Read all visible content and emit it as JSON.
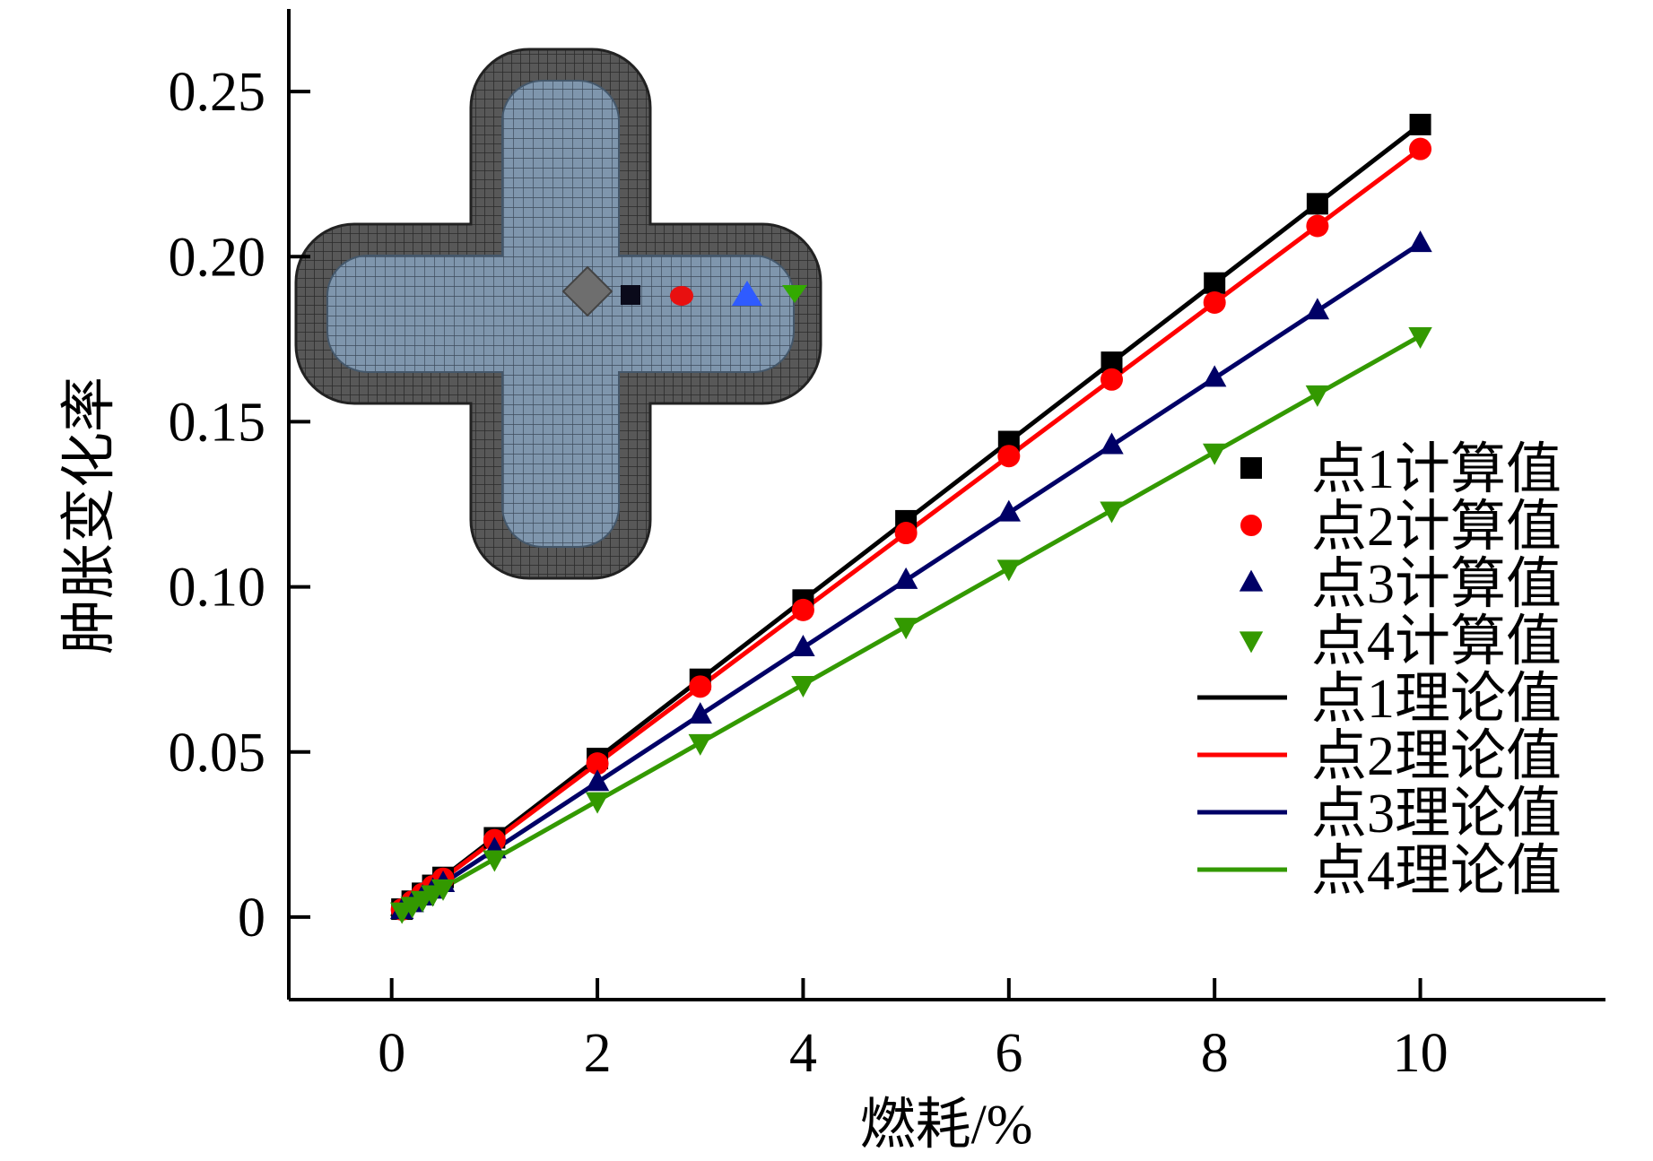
{
  "chart_data": {
    "type": "line",
    "xlabel": "燃耗/%",
    "ylabel": "肿胀变化率",
    "xlim": [
      -1,
      11.8
    ],
    "ylim": [
      -0.025,
      0.275
    ],
    "xticks": [
      "0",
      "2",
      "4",
      "6",
      "8",
      "10"
    ],
    "xtick_values": [
      0,
      2,
      4,
      6,
      8,
      10
    ],
    "yticks": [
      "0",
      "0.05",
      "0.10",
      "0.15",
      "0.20",
      "0.25"
    ],
    "ytick_values": [
      0,
      0.05,
      0.1,
      0.15,
      0.2,
      0.25
    ],
    "grid": false,
    "legend_position": "right",
    "inset": "cruciform fuel cross-section mesh with point markers",
    "series": [
      {
        "name": "点1计算值",
        "kind": "marker",
        "marker": "square",
        "color": "#000000",
        "x": [
          0.1,
          0.2,
          0.3,
          0.4,
          0.5,
          1,
          2,
          3,
          4,
          5,
          6,
          7,
          8,
          9,
          10
        ],
        "y": [
          0.0024,
          0.0048,
          0.0072,
          0.0096,
          0.012,
          0.024,
          0.048,
          0.072,
          0.096,
          0.12,
          0.144,
          0.168,
          0.192,
          0.216,
          0.24
        ]
      },
      {
        "name": "点2计算值",
        "kind": "marker",
        "marker": "circle",
        "color": "#ff0000",
        "x": [
          0.1,
          0.2,
          0.3,
          0.4,
          0.5,
          1,
          2,
          3,
          4,
          5,
          6,
          7,
          8,
          9,
          10
        ],
        "y": [
          0.0023,
          0.0047,
          0.007,
          0.0093,
          0.0116,
          0.0233,
          0.0465,
          0.0698,
          0.093,
          0.1163,
          0.1396,
          0.1628,
          0.1861,
          0.2093,
          0.2326
        ]
      },
      {
        "name": "点3计算值",
        "kind": "marker",
        "marker": "triangle-up",
        "color": "#000066",
        "x": [
          0.1,
          0.2,
          0.3,
          0.4,
          0.5,
          1,
          2,
          3,
          4,
          5,
          6,
          7,
          8,
          9,
          10
        ],
        "y": [
          0.002,
          0.0041,
          0.0061,
          0.0082,
          0.0102,
          0.0204,
          0.0408,
          0.0612,
          0.0816,
          0.102,
          0.1224,
          0.1428,
          0.1632,
          0.1836,
          0.204
        ]
      },
      {
        "name": "点4计算值",
        "kind": "marker",
        "marker": "triangle-down",
        "color": "#339900",
        "x": [
          0.1,
          0.2,
          0.3,
          0.4,
          0.5,
          1,
          2,
          3,
          4,
          5,
          6,
          7,
          8,
          9,
          10
        ],
        "y": [
          0.0018,
          0.0035,
          0.0053,
          0.007,
          0.0088,
          0.0176,
          0.0352,
          0.0528,
          0.0704,
          0.088,
          0.1056,
          0.1232,
          0.1408,
          0.1584,
          0.176
        ]
      },
      {
        "name": "点1理论值",
        "kind": "line",
        "color": "#000000",
        "x": [
          0,
          10
        ],
        "y": [
          0,
          0.24
        ]
      },
      {
        "name": "点2理论值",
        "kind": "line",
        "color": "#ff0000",
        "x": [
          0,
          10
        ],
        "y": [
          0,
          0.2326
        ]
      },
      {
        "name": "点3理论值",
        "kind": "line",
        "color": "#000066",
        "x": [
          0,
          10
        ],
        "y": [
          0,
          0.204
        ]
      },
      {
        "name": "点4理论值",
        "kind": "line",
        "color": "#339900",
        "x": [
          0,
          10
        ],
        "y": [
          0,
          0.176
        ]
      }
    ]
  }
}
